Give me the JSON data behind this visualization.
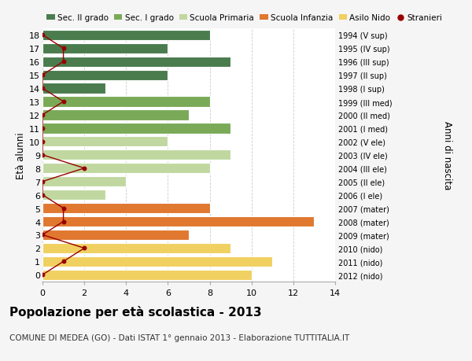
{
  "title": "Popolazione per età scolastica - 2013",
  "subtitle": "COMUNE DI MEDEA (GO) - Dati ISTAT 1° gennaio 2013 - Elaborazione TUTTITALIA.IT",
  "ylabel_left": "Età alunni",
  "ylabel_right": "Anni di nascita",
  "background_color": "#f5f5f5",
  "bar_area_color": "#ffffff",
  "ages": [
    18,
    17,
    16,
    15,
    14,
    13,
    12,
    11,
    10,
    9,
    8,
    7,
    6,
    5,
    4,
    3,
    2,
    1,
    0
  ],
  "years": [
    "1994 (V sup)",
    "1995 (IV sup)",
    "1996 (III sup)",
    "1997 (II sup)",
    "1998 (I sup)",
    "1999 (III med)",
    "2000 (II med)",
    "2001 (I med)",
    "2002 (V ele)",
    "2003 (IV ele)",
    "2004 (III ele)",
    "2005 (II ele)",
    "2006 (I ele)",
    "2007 (mater)",
    "2008 (mater)",
    "2009 (mater)",
    "2010 (nido)",
    "2011 (nido)",
    "2012 (nido)"
  ],
  "bar_values": [
    8,
    6,
    9,
    6,
    3,
    8,
    7,
    9,
    6,
    9,
    8,
    4,
    3,
    8,
    13,
    7,
    9,
    11,
    10
  ],
  "bar_colors": [
    "#4a7c4e",
    "#4a7c4e",
    "#4a7c4e",
    "#4a7c4e",
    "#4a7c4e",
    "#7aaa58",
    "#7aaa58",
    "#7aaa58",
    "#c0d8a0",
    "#c0d8a0",
    "#c0d8a0",
    "#c0d8a0",
    "#c0d8a0",
    "#e07830",
    "#e07830",
    "#e07830",
    "#f0d060",
    "#f0d060",
    "#f0d060"
  ],
  "stranieri_values": [
    0,
    1,
    1,
    0,
    0,
    1,
    0,
    0,
    0,
    0,
    2,
    0,
    0,
    1,
    1,
    0,
    2,
    1,
    0
  ],
  "stranieri_color": "#990000",
  "legend_items": [
    {
      "label": "Sec. II grado",
      "color": "#4a7c4e"
    },
    {
      "label": "Sec. I grado",
      "color": "#7aaa58"
    },
    {
      "label": "Scuola Primaria",
      "color": "#c0d8a0"
    },
    {
      "label": "Scuola Infanzia",
      "color": "#e07830"
    },
    {
      "label": "Asilo Nido",
      "color": "#f0d060"
    },
    {
      "label": "Stranieri",
      "color": "#990000"
    }
  ],
  "xlim": [
    0,
    14
  ],
  "xticks": [
    0,
    2,
    4,
    6,
    8,
    10,
    12,
    14
  ],
  "grid_color": "#cccccc",
  "title_fontsize": 11,
  "subtitle_fontsize": 7.5,
  "tick_fontsize": 8,
  "legend_fontsize": 7.5
}
